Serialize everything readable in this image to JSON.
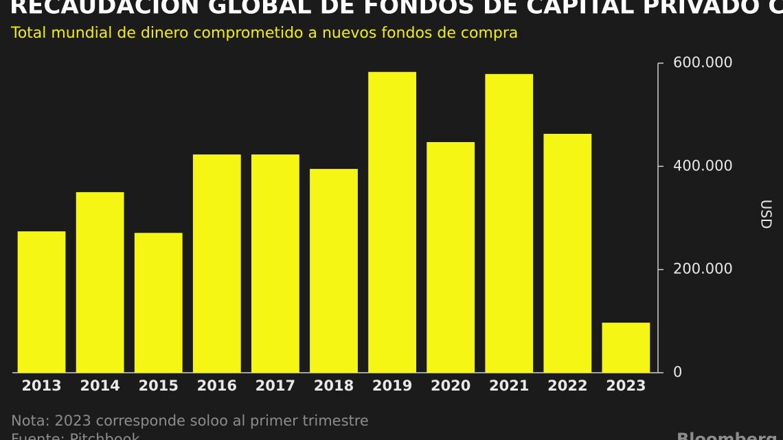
{
  "chart_data": {
    "type": "bar",
    "title": "RECAUDACIÓN GLOBAL DE FONDOS DE CAPITAL PRIVADO CAE",
    "subtitle": "Total mundial de dinero comprometido a nuevos fondos de compra",
    "y_label": "USD",
    "categories": [
      "2013",
      "2014",
      "2015",
      "2016",
      "2017",
      "2018",
      "2019",
      "2020",
      "2021",
      "2022",
      "2023"
    ],
    "values": [
      274000,
      350000,
      271000,
      423000,
      423000,
      395000,
      583000,
      447000,
      579000,
      463000,
      97000
    ],
    "color": "#f6f614",
    "ylim": [
      0,
      600000
    ],
    "yticks": [
      0,
      {
        "value": 200000,
        "label": "200.000"
      },
      {
        "value": 400000,
        "label": "400.000"
      },
      {
        "value": 600000,
        "label": "600.000"
      }
    ],
    "note": "Nota: 2023 corresponde soloo al primer trimestre",
    "source": "Fuente: Pitchbook",
    "brand": "Bloomberg"
  }
}
